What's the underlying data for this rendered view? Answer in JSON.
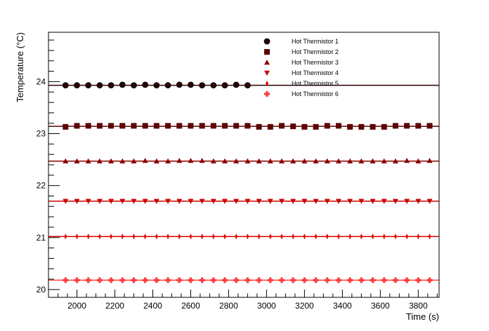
{
  "chart_data": {
    "type": "scatter",
    "title": "",
    "xlabel": "Time (s)",
    "ylabel": "Temperature (°C)",
    "xlim": [
      1850,
      3910
    ],
    "ylim": [
      19.85,
      24.95
    ],
    "x_ticks": [
      {
        "value": 2000,
        "label": "2000"
      },
      {
        "value": 2200,
        "label": "2200"
      },
      {
        "value": 2400,
        "label": "2400"
      },
      {
        "value": 2600,
        "label": "2600"
      },
      {
        "value": 2800,
        "label": "2800"
      },
      {
        "value": 3000,
        "label": "3000"
      },
      {
        "value": 3200,
        "label": "3200"
      },
      {
        "value": 3400,
        "label": "3400"
      },
      {
        "value": 3600,
        "label": "3600"
      },
      {
        "value": 3800,
        "label": "3800"
      }
    ],
    "y_ticks": [
      {
        "value": 20,
        "label": "20"
      },
      {
        "value": 21,
        "label": "21"
      },
      {
        "value": 22,
        "label": "22"
      },
      {
        "value": 23,
        "label": "23"
      },
      {
        "value": 24,
        "label": "24"
      }
    ],
    "grid": false,
    "legend_position": "top-right",
    "series": [
      {
        "name": "Hot Thermistor 1",
        "marker": "circle",
        "color": "#2a0000",
        "x": [
          1940,
          2000,
          2060,
          2120,
          2180,
          2240,
          2300,
          2360,
          2420,
          2480,
          2540,
          2600,
          2660,
          2720,
          2780,
          2840,
          2900
        ],
        "y": [
          23.93,
          23.93,
          23.93,
          23.93,
          23.93,
          23.94,
          23.93,
          23.94,
          23.93,
          23.93,
          23.94,
          23.94,
          23.93,
          23.93,
          23.93,
          23.94,
          23.93
        ],
        "fit": 23.93
      },
      {
        "name": "Hot Thermistor 2",
        "marker": "square",
        "color": "#5c0000",
        "x": [
          1940,
          2000,
          2060,
          2120,
          2180,
          2240,
          2300,
          2360,
          2420,
          2480,
          2540,
          2600,
          2660,
          2720,
          2780,
          2840,
          2900,
          2960,
          3020,
          3080,
          3140,
          3200,
          3260,
          3320,
          3380,
          3440,
          3500,
          3560,
          3620,
          3680,
          3740,
          3800,
          3860
        ],
        "y": [
          23.13,
          23.15,
          23.15,
          23.15,
          23.15,
          23.15,
          23.15,
          23.15,
          23.15,
          23.15,
          23.15,
          23.15,
          23.15,
          23.15,
          23.15,
          23.15,
          23.15,
          23.13,
          23.13,
          23.15,
          23.14,
          23.13,
          23.13,
          23.15,
          23.15,
          23.13,
          23.13,
          23.13,
          23.13,
          23.15,
          23.15,
          23.15,
          23.15
        ],
        "fit": 23.14
      },
      {
        "name": "Hot Thermistor 3",
        "marker": "triangle-up",
        "color": "#8c0000",
        "x": [
          1940,
          2000,
          2060,
          2120,
          2180,
          2240,
          2300,
          2360,
          2420,
          2480,
          2540,
          2600,
          2660,
          2720,
          2780,
          2840,
          2900,
          2960,
          3020,
          3080,
          3140,
          3200,
          3260,
          3320,
          3380,
          3440,
          3500,
          3560,
          3620,
          3680,
          3740,
          3800,
          3860
        ],
        "y": [
          22.47,
          22.47,
          22.47,
          22.47,
          22.47,
          22.47,
          22.47,
          22.48,
          22.47,
          22.47,
          22.48,
          22.48,
          22.48,
          22.47,
          22.47,
          22.47,
          22.47,
          22.47,
          22.47,
          22.47,
          22.47,
          22.47,
          22.47,
          22.47,
          22.47,
          22.47,
          22.47,
          22.47,
          22.47,
          22.47,
          22.48,
          22.47,
          22.48
        ],
        "fit": 22.47
      },
      {
        "name": "Hot Thermistor 4",
        "marker": "triangle-down",
        "color": "#cc0000",
        "x": [
          1940,
          2000,
          2060,
          2120,
          2180,
          2240,
          2300,
          2360,
          2420,
          2480,
          2540,
          2600,
          2660,
          2720,
          2780,
          2840,
          2900,
          2960,
          3020,
          3080,
          3140,
          3200,
          3260,
          3320,
          3380,
          3440,
          3500,
          3560,
          3620,
          3680,
          3740,
          3800,
          3860
        ],
        "y": [
          21.7,
          21.7,
          21.7,
          21.7,
          21.7,
          21.7,
          21.7,
          21.7,
          21.7,
          21.7,
          21.7,
          21.7,
          21.7,
          21.7,
          21.7,
          21.7,
          21.7,
          21.7,
          21.7,
          21.7,
          21.7,
          21.7,
          21.7,
          21.7,
          21.7,
          21.7,
          21.7,
          21.7,
          21.7,
          21.7,
          21.7,
          21.7,
          21.7
        ],
        "fit": 21.7
      },
      {
        "name": "Hot Thermistor 5",
        "marker": "diamond-thin",
        "color": "#e00000",
        "x": [
          1940,
          2000,
          2060,
          2120,
          2180,
          2240,
          2300,
          2360,
          2420,
          2480,
          2540,
          2600,
          2660,
          2720,
          2780,
          2840,
          2900,
          2960,
          3020,
          3080,
          3140,
          3200,
          3260,
          3320,
          3380,
          3440,
          3500,
          3560,
          3620,
          3680,
          3740,
          3800,
          3860
        ],
        "y": [
          21.02,
          21.02,
          21.02,
          21.02,
          21.02,
          21.02,
          21.02,
          21.02,
          21.02,
          21.02,
          21.02,
          21.02,
          21.02,
          21.02,
          21.02,
          21.02,
          21.02,
          21.02,
          21.02,
          21.02,
          21.02,
          21.02,
          21.02,
          21.02,
          21.02,
          21.02,
          21.02,
          21.02,
          21.02,
          21.02,
          21.02,
          21.02,
          21.02
        ],
        "fit": 21.02
      },
      {
        "name": "Hot Thermistor 6",
        "marker": "cross",
        "color": "#ff3b3b",
        "x": [
          1940,
          2000,
          2060,
          2120,
          2180,
          2240,
          2300,
          2360,
          2420,
          2480,
          2540,
          2600,
          2660,
          2720,
          2780,
          2840,
          2900,
          2960,
          3020,
          3080,
          3140,
          3200,
          3260,
          3320,
          3380,
          3440,
          3500,
          3560,
          3620,
          3680,
          3740,
          3800,
          3860
        ],
        "y": [
          20.18,
          20.18,
          20.18,
          20.18,
          20.18,
          20.18,
          20.18,
          20.18,
          20.18,
          20.18,
          20.18,
          20.18,
          20.18,
          20.18,
          20.18,
          20.18,
          20.18,
          20.18,
          20.18,
          20.18,
          20.18,
          20.18,
          20.18,
          20.18,
          20.18,
          20.18,
          20.18,
          20.18,
          20.18,
          20.18,
          20.18,
          20.18,
          20.18
        ],
        "fit": 20.18
      }
    ]
  }
}
